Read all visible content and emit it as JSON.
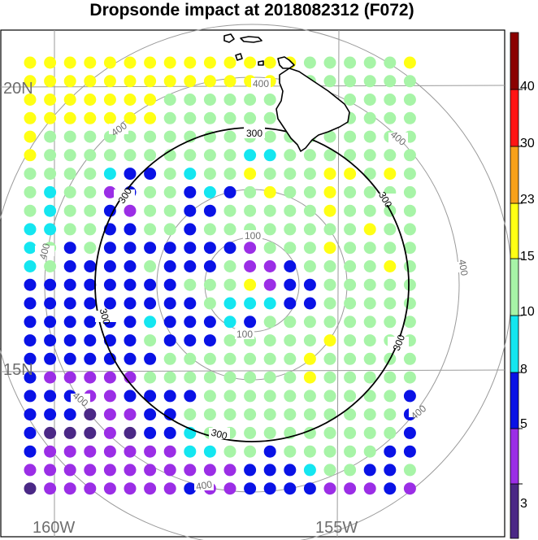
{
  "title": "Dropsonde impact at 2018082312 (F072)",
  "map": {
    "lat_labels": [
      "20N",
      "15N"
    ],
    "lon_labels": [
      "160W",
      "155W"
    ],
    "range_ring_labels": [
      "100",
      "300",
      "400"
    ],
    "ring_color": "#000000",
    "grid_color": "#9a9a9a"
  },
  "colorbar": {
    "levels": [
      "3",
      "5",
      "8",
      "10",
      "15",
      "23",
      "30",
      "40"
    ],
    "colors": [
      "#4b2886",
      "#9b2ee6",
      "#0a12e6",
      "#14e6f0",
      "#a7f4a7",
      "#ffff14",
      "#f7a11a",
      "#ff1414",
      "#8b0000"
    ]
  },
  "dot_legend": {
    "P": "#9b2ee6",
    "D": "#4b2886",
    "B": "#0a12e6",
    "C": "#14e6f0",
    "G": "#a7f4a7",
    "Y": "#ffff14"
  },
  "dots": [
    "YYYYYYYYYYYYYYGGGGGY",
    "YYYYYYYYYYYYYGGGGGGG",
    "YYYYYYYGGGGGGGGGGGGG",
    "YYYYYYYGGGGGGGGGGGGG",
    "YGGGGGGGGGGGGGGGGGGG",
    "YGGGGGGGGGGCCGGGGGGG",
    "GGGGCBBGCGGYGGGYYGYG",
    "GCGGPBGGBCBGYGGYGGGG",
    "GCGGBPGGBBGGGGGYGGGG",
    "CCGGBBGGBGGGGGGGGYGG",
    "CGBGBBBBBBBPGGGYGGGG",
    "CGBBBBGBBBGPPBGGGGYG",
    "BBBBBBBBGGGYPBBGGGGG",
    "BBBBBBBBBGCCCBBGGGGG",
    "BBBBBBCBBBCBGGGGGGGG",
    "BBBBBBGBBBGGGGGYGGGG",
    "BBBBBBBGGGGGGGYGGGGG",
    "BPPPPPGGGGGGGGYGGGGG",
    "BBBPPBBBBGGGGGGGGGGB",
    "BBBDPPBBGGGGGGGGGGGB",
    "BDDDPDBBCGGGGGGGGGGB",
    "BPPPPPPPCCGGBGGGGGBB",
    "PPPPPPPPPPPBBBCGGBBG",
    "DPPPPPPPBPPBBBBPPPBP"
  ]
}
